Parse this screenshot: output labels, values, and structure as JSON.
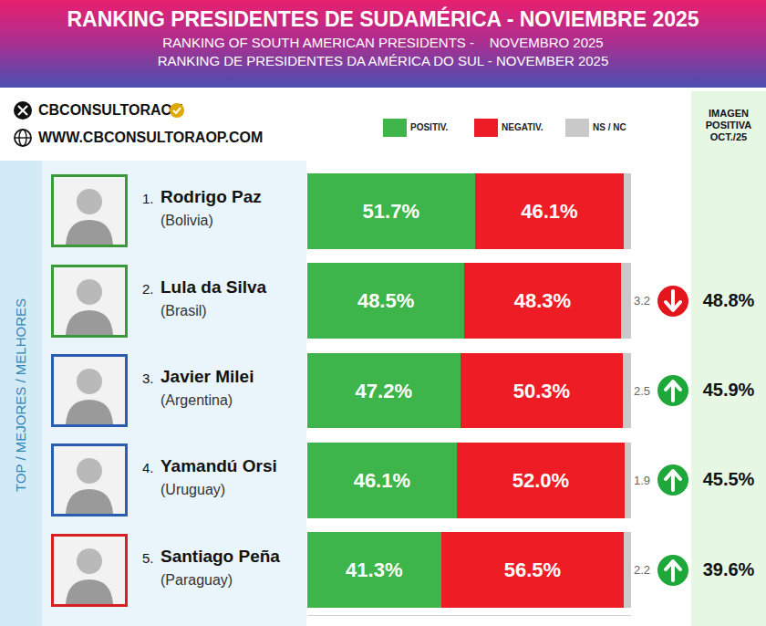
{
  "chart_data": {
    "type": "bar",
    "orientation": "horizontal",
    "stacked": true,
    "data_labels": true,
    "tick_labels": false,
    "legend": "top",
    "title": "RANKING PRESIDENTES DE SUDAMÉRICA - NOVIEMBRE 2025",
    "subtitle": [
      "RANKING OF SOUTH AMERICAN PRESIDENTS -    NOVEMBRO 2025",
      "RANKING DE PRESIDENTES DA AMÉRICA DO SUL - NOVEMBER 2025"
    ],
    "source": [
      "CBCONSULTORAOK",
      "WWW.CBCONSULTORAOP.COM"
    ],
    "group_label": "TOP / MEJORES / MELHORES",
    "ranks": [
      "1.",
      "2.",
      "3.",
      "4.",
      "5."
    ],
    "categories": [
      "Rodrigo Paz",
      "Lula da Silva",
      "Javier Milei",
      "Yamandú Orsi",
      "Santiago Peña"
    ],
    "countries": [
      "(Bolivia)",
      "(Brasil)",
      "(Argentina)",
      "(Uruguay)",
      "(Paraguay)"
    ],
    "xlim": [
      0,
      100
    ],
    "xticks": [],
    "series": [
      {
        "name": "POSITIV.",
        "color": "#3db54a",
        "values": [
          51.7,
          48.5,
          47.2,
          46.1,
          41.3
        ],
        "value_labels": [
          "51.7%",
          "48.5%",
          "47.2%",
          "46.1%",
          "41.3%"
        ]
      },
      {
        "name": "NEGATIV.",
        "color": "#ee1c25",
        "values": [
          46.1,
          48.3,
          50.3,
          52.0,
          56.5
        ],
        "value_labels": [
          "46.1%",
          "48.3%",
          "50.3%",
          "52.0%",
          "56.5%"
        ]
      },
      {
        "name": "NS / NC",
        "color": "#c9c9c9",
        "values": [
          2.2,
          3.2,
          2.5,
          1.9,
          2.2
        ]
      }
    ],
    "previous": {
      "title": "IMAGEN POSITIVA OCT./25",
      "values": [
        null,
        48.8,
        45.9,
        45.5,
        39.6
      ],
      "value_labels": [
        null,
        "48.8%",
        "45.9%",
        "45.5%",
        "39.6%"
      ]
    }
  }
}
